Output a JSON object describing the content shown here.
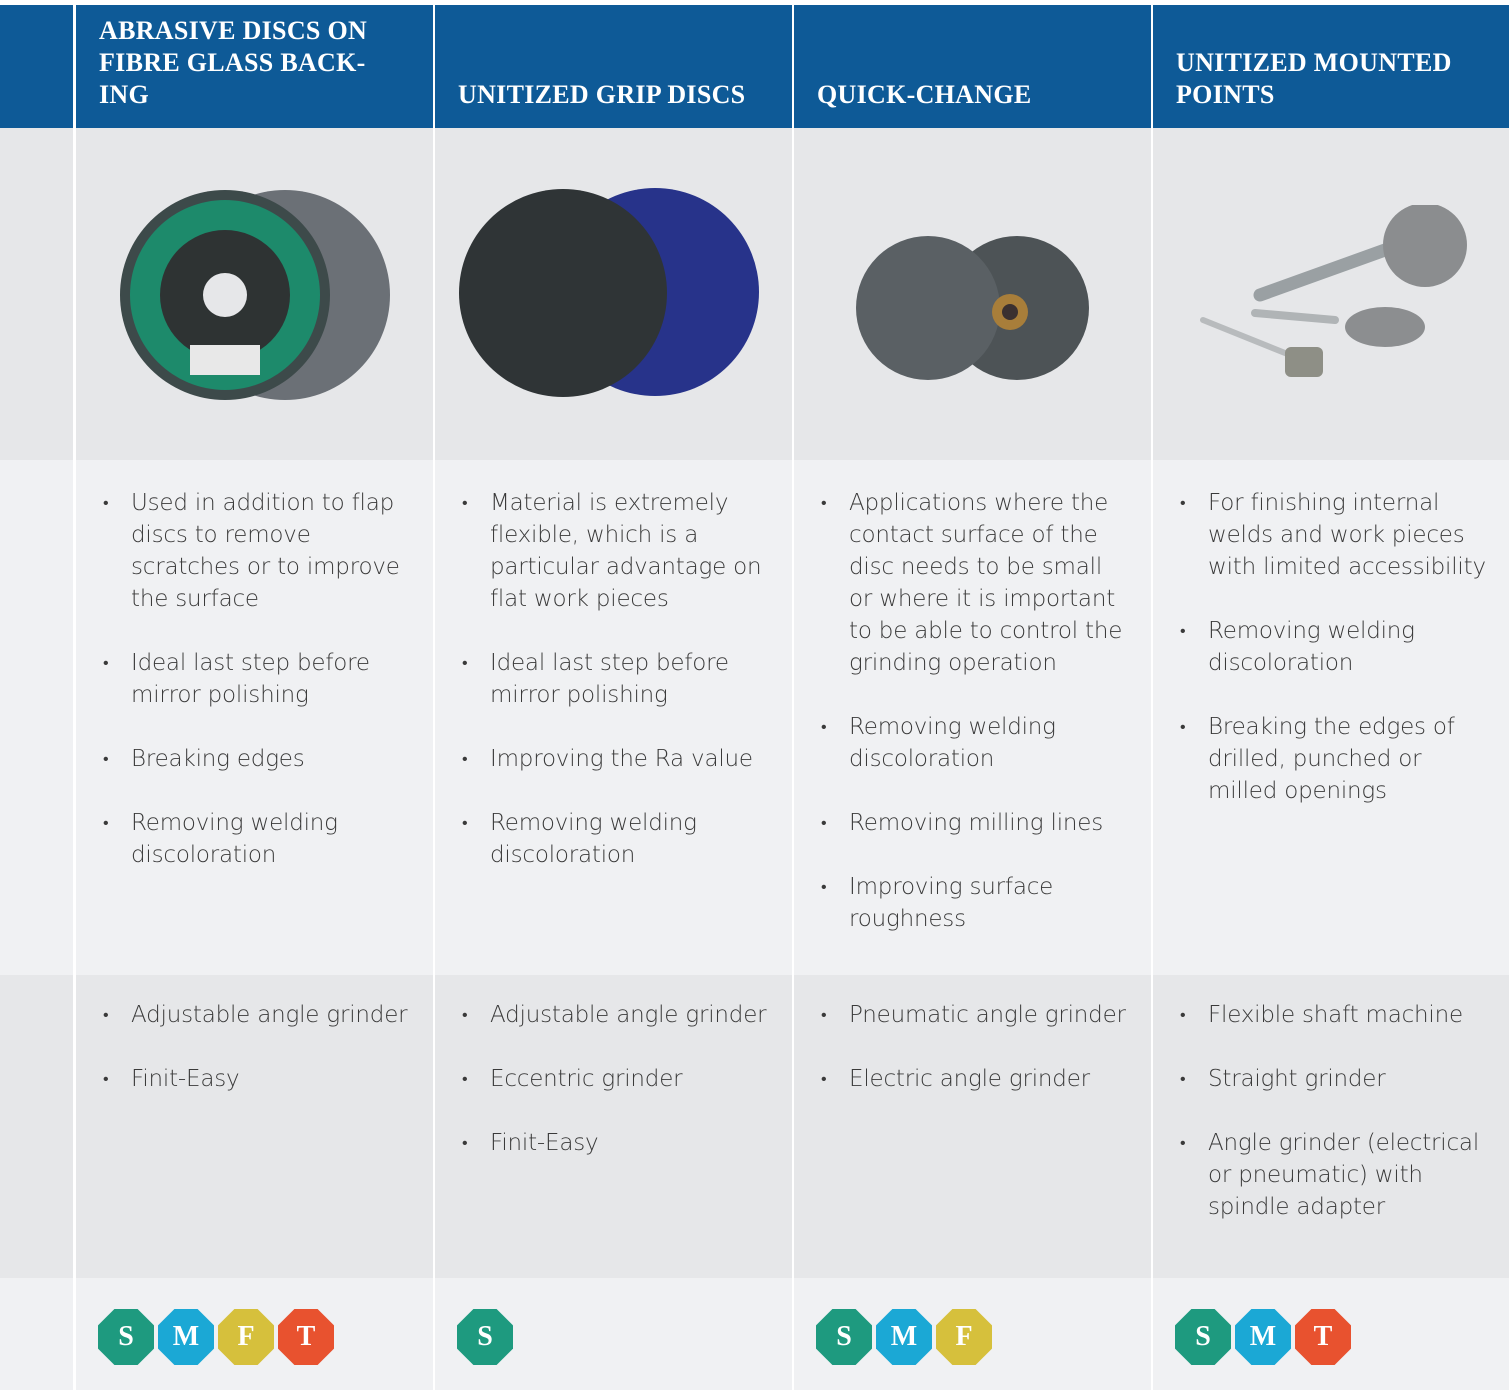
{
  "columns": [
    {
      "title": "ABRASIVE DISCS ON FIBRE GLASS BACK-ING",
      "applications": [
        "Used in addition to flap discs to remove scratches or to improve the surface",
        "Ideal last step before mirror polishing",
        "Breaking edges",
        "Removing welding discoloration"
      ],
      "machines": [
        "Adjustable angle grinder",
        "Finit-Easy"
      ],
      "badges": [
        {
          "letter": "S",
          "color": "#1e9a7f"
        },
        {
          "letter": "M",
          "color": "#1ba8d5"
        },
        {
          "letter": "F",
          "color": "#d6c03c"
        },
        {
          "letter": "T",
          "color": "#e8522f"
        }
      ]
    },
    {
      "title": "UNITIZED GRIP DISCS",
      "applications": [
        "Material is extremely flexible, which is a particular advantage on flat work pieces",
        "Ideal last step before mirror polishing",
        "Improving the Ra value",
        "Removing welding discoloration"
      ],
      "machines": [
        "Adjustable angle grinder",
        "Eccentric grinder",
        "Finit-Easy"
      ],
      "badges": [
        {
          "letter": "S",
          "color": "#1e9a7f"
        }
      ]
    },
    {
      "title": "QUICK-CHANGE",
      "applications": [
        "Applications where the contact surface of the disc needs to be small or where it is important to be able to control the grinding operation",
        "Removing welding discoloration",
        "Removing milling lines",
        "Improving surface roughness"
      ],
      "machines": [
        "Pneumatic angle grinder",
        "Electric angle grinder"
      ],
      "badges": [
        {
          "letter": "S",
          "color": "#1e9a7f"
        },
        {
          "letter": "M",
          "color": "#1ba8d5"
        },
        {
          "letter": "F",
          "color": "#d6c03c"
        }
      ]
    },
    {
      "title": "UNITIZED MOUNTED POINTS",
      "applications": [
        "For finishing internal welds and work pieces with limited accessibility",
        "Removing welding discoloration",
        "Breaking the edges of drilled, punched or milled openings"
      ],
      "machines": [
        "Flexible shaft machine",
        "Straight grinder",
        "Angle grinder (electrical or pneumatic) with spindle adapter"
      ],
      "badges": [
        {
          "letter": "S",
          "color": "#1e9a7f"
        },
        {
          "letter": "M",
          "color": "#1ba8d5"
        },
        {
          "letter": "T",
          "color": "#e8522f"
        }
      ]
    }
  ]
}
